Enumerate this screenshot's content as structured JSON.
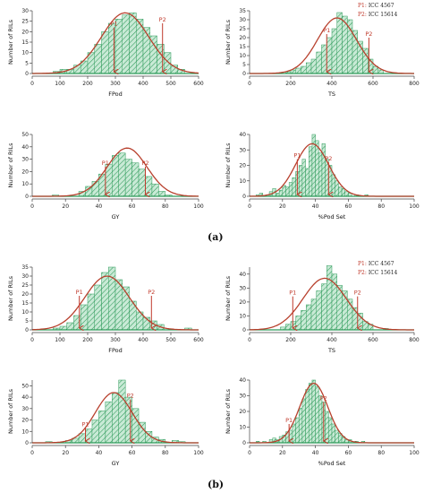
{
  "colors": {
    "bar_fill": "#c9ead6",
    "bar_hatch": "#2e9a5a",
    "curve": "#b8412e",
    "marker": "#c0392b",
    "baseline": "#2e9a5a"
  },
  "panel_labels": [
    "(a)",
    "(b)"
  ],
  "legend": {
    "p1_key": "P1:",
    "p1_name": "ICC 4567",
    "p2_key": "P2:",
    "p2_name": "ICC 15614"
  },
  "chart_data": [
    {
      "type": "bar",
      "group": "(a)",
      "xlabel": "FPod",
      "ylabel": "Number of RILs",
      "xlim": [
        0,
        600
      ],
      "ylim": [
        0,
        30
      ],
      "xticks": [
        0,
        100,
        200,
        300,
        400,
        500,
        600
      ],
      "yticks": [
        0,
        5,
        10,
        15,
        20,
        25,
        30
      ],
      "bin_width": 25,
      "bin_starts": [
        75,
        100,
        125,
        150,
        175,
        200,
        225,
        250,
        275,
        300,
        325,
        350,
        375,
        400,
        425,
        450,
        475,
        500,
        525
      ],
      "values": [
        1,
        2,
        2,
        4,
        6,
        10,
        14,
        20,
        24,
        26,
        28,
        29,
        26,
        22,
        18,
        14,
        10,
        4,
        2
      ],
      "markers": [
        {
          "label": "P1",
          "x": 295,
          "top": 22
        },
        {
          "label": "P2",
          "x": 470,
          "top": 24
        }
      ],
      "curve_mean": 335,
      "curve_sd": 85,
      "curve_peak": 29
    },
    {
      "type": "bar",
      "group": "(a)",
      "xlabel": "TS",
      "ylabel": "Number of RILs",
      "xlim": [
        0,
        800
      ],
      "ylim": [
        0,
        35
      ],
      "xticks": [
        0,
        200,
        400,
        600,
        800
      ],
      "yticks": [
        0,
        5,
        10,
        15,
        20,
        25,
        30,
        35
      ],
      "bin_width": 25,
      "bin_starts": [
        175,
        200,
        225,
        250,
        275,
        300,
        325,
        350,
        375,
        400,
        425,
        450,
        475,
        500,
        525,
        550,
        575,
        600,
        625
      ],
      "values": [
        1,
        2,
        3,
        4,
        6,
        8,
        12,
        16,
        20,
        25,
        34,
        32,
        30,
        24,
        18,
        14,
        8,
        4,
        2
      ],
      "markers": [
        {
          "label": "P1",
          "x": 375,
          "top": 22
        },
        {
          "label": "P2",
          "x": 580,
          "top": 20
        }
      ],
      "curve_mean": 425,
      "curve_sd": 95,
      "curve_peak": 31
    },
    {
      "type": "bar",
      "group": "(a)",
      "xlabel": "GY",
      "ylabel": "Number of RILs",
      "xlim": [
        0,
        100
      ],
      "ylim": [
        0,
        50
      ],
      "xticks": [
        0,
        20,
        40,
        60,
        80,
        100
      ],
      "yticks": [
        0,
        10,
        20,
        30,
        40,
        50
      ],
      "bin_width": 4,
      "bin_starts": [
        12,
        28,
        32,
        36,
        40,
        44,
        48,
        52,
        56,
        60,
        64,
        68,
        72,
        76,
        80
      ],
      "values": [
        1,
        4,
        8,
        12,
        18,
        26,
        33,
        35,
        30,
        27,
        22,
        16,
        10,
        4,
        1
      ],
      "markers": [
        {
          "label": "P1",
          "x": 44,
          "top": 24
        },
        {
          "label": "P2",
          "x": 68,
          "top": 24
        }
      ],
      "curve_mean": 57,
      "curve_sd": 12,
      "curve_peak": 39
    },
    {
      "type": "bar",
      "group": "(a)",
      "xlabel": "%Pod Set",
      "ylabel": "Number of RILs",
      "xlim": [
        0,
        100
      ],
      "ylim": [
        0,
        40
      ],
      "xticks": [
        0,
        20,
        40,
        60,
        80,
        100
      ],
      "yticks": [
        0,
        10,
        20,
        30,
        40
      ],
      "bin_width": 2,
      "bin_starts": [
        4,
        6,
        10,
        12,
        14,
        16,
        18,
        20,
        22,
        24,
        26,
        28,
        30,
        32,
        34,
        36,
        38,
        40,
        42,
        44,
        46,
        48,
        50,
        52,
        54,
        56,
        58,
        60,
        64,
        70
      ],
      "values": [
        1,
        2,
        1,
        3,
        5,
        2,
        4,
        7,
        6,
        9,
        12,
        16,
        20,
        24,
        18,
        32,
        40,
        36,
        28,
        34,
        24,
        20,
        14,
        10,
        6,
        5,
        3,
        2,
        1,
        1
      ],
      "markers": [
        {
          "label": "P1",
          "x": 29,
          "top": 24
        },
        {
          "label": "P2",
          "x": 48,
          "top": 22
        }
      ],
      "curve_mean": 38,
      "curve_sd": 10,
      "curve_peak": 34
    },
    {
      "type": "bar",
      "group": "(b)",
      "xlabel": "FPod",
      "ylabel": "Number of RILs",
      "xlim": [
        0,
        600
      ],
      "ylim": [
        0,
        35
      ],
      "xticks": [
        0,
        100,
        200,
        300,
        400,
        500,
        600
      ],
      "yticks": [
        0,
        5,
        10,
        15,
        20,
        25,
        30,
        35
      ],
      "bin_width": 25,
      "bin_starts": [
        75,
        100,
        125,
        150,
        175,
        200,
        225,
        250,
        275,
        300,
        325,
        350,
        375,
        400,
        425,
        450,
        550
      ],
      "values": [
        1,
        2,
        4,
        8,
        14,
        20,
        25,
        32,
        35,
        28,
        24,
        16,
        10,
        7,
        5,
        3,
        1
      ],
      "markers": [
        {
          "label": "P1",
          "x": 170,
          "top": 19
        },
        {
          "label": "P2",
          "x": 430,
          "top": 19
        }
      ],
      "curve_mean": 270,
      "curve_sd": 80,
      "curve_peak": 30
    },
    {
      "type": "bar",
      "group": "(b)",
      "xlabel": "TS",
      "ylabel": "Number of RILs",
      "xlim": [
        0,
        800
      ],
      "ylim": [
        0,
        45
      ],
      "xticks": [
        0,
        200,
        400,
        600,
        800
      ],
      "yticks": [
        0,
        10,
        20,
        30,
        40
      ],
      "bin_width": 25,
      "bin_starts": [
        150,
        175,
        200,
        225,
        250,
        275,
        300,
        325,
        350,
        375,
        400,
        425,
        450,
        475,
        500,
        525,
        550,
        575,
        650
      ],
      "values": [
        2,
        4,
        6,
        10,
        14,
        18,
        22,
        28,
        33,
        46,
        40,
        32,
        28,
        22,
        16,
        12,
        6,
        4,
        1
      ],
      "markers": [
        {
          "label": "P1",
          "x": 210,
          "top": 24
        },
        {
          "label": "P2",
          "x": 525,
          "top": 24
        }
      ],
      "curve_mean": 365,
      "curve_sd": 105,
      "curve_peak": 37
    },
    {
      "type": "bar",
      "group": "(b)",
      "xlabel": "GY",
      "ylabel": "Number of RILs",
      "xlim": [
        0,
        100
      ],
      "ylim": [
        0,
        55
      ],
      "xticks": [
        0,
        20,
        40,
        60,
        80,
        100
      ],
      "yticks": [
        0,
        10,
        20,
        30,
        40,
        50
      ],
      "bin_width": 4,
      "bin_starts": [
        8,
        20,
        24,
        28,
        32,
        36,
        40,
        44,
        48,
        52,
        56,
        60,
        64,
        68,
        72,
        76,
        84,
        88
      ],
      "values": [
        1,
        2,
        4,
        8,
        12,
        20,
        28,
        36,
        44,
        55,
        40,
        30,
        18,
        10,
        5,
        3,
        2,
        1
      ],
      "markers": [
        {
          "label": "P1",
          "x": 32,
          "top": 13
        },
        {
          "label": "P2",
          "x": 59,
          "top": 38
        }
      ],
      "curve_mean": 49,
      "curve_sd": 11,
      "curve_peak": 44
    },
    {
      "type": "bar",
      "group": "(b)",
      "xlabel": "%Pod Set",
      "ylabel": "Number of RILs",
      "xlim": [
        0,
        100
      ],
      "ylim": [
        0,
        40
      ],
      "xticks": [
        0,
        20,
        40,
        60,
        80,
        100
      ],
      "yticks": [
        0,
        10,
        20,
        30,
        40
      ],
      "bin_width": 2,
      "bin_starts": [
        4,
        8,
        12,
        14,
        16,
        18,
        20,
        22,
        24,
        26,
        28,
        30,
        32,
        34,
        36,
        38,
        40,
        42,
        44,
        46,
        48,
        50,
        52,
        54,
        56,
        58,
        60,
        64,
        68
      ],
      "values": [
        1,
        1,
        2,
        3,
        2,
        4,
        5,
        7,
        8,
        12,
        16,
        22,
        28,
        34,
        38,
        40,
        36,
        30,
        26,
        20,
        16,
        12,
        8,
        6,
        4,
        2,
        2,
        1,
        1
      ],
      "markers": [
        {
          "label": "P1",
          "x": 24,
          "top": 12
        },
        {
          "label": "P2",
          "x": 45,
          "top": 26
        }
      ],
      "curve_mean": 39,
      "curve_sd": 8.5,
      "curve_peak": 38
    }
  ]
}
